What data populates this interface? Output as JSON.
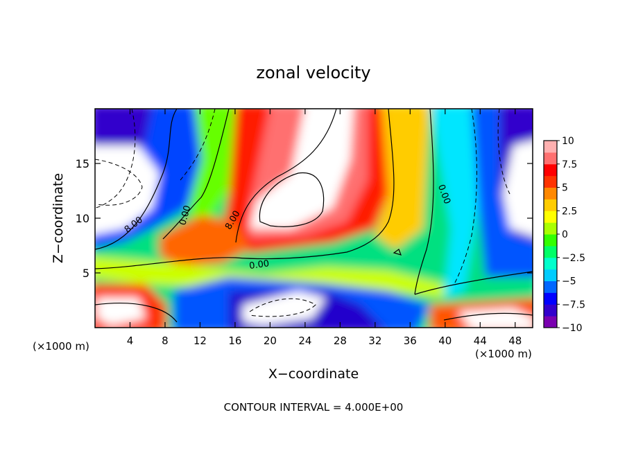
{
  "chart_data": {
    "type": "heatmap",
    "title": "zonal velocity",
    "xlabel": "X−coordinate",
    "ylabel": "Z−coordinate",
    "x_unit_left": "(×1000 m)",
    "x_unit_right": "(×1000 m)",
    "footer": "CONTOUR INTERVAL = 4.000E+00",
    "xlim": [
      0,
      50
    ],
    "ylim": [
      0,
      20
    ],
    "x_ticks": [
      4,
      8,
      12,
      16,
      20,
      24,
      28,
      32,
      36,
      40,
      44,
      48
    ],
    "x_tick_labels": [
      "4",
      "8",
      "12",
      "16",
      "20",
      "24",
      "28",
      "32",
      "36",
      "40",
      "44",
      "48"
    ],
    "y_ticks": [
      5,
      10,
      15
    ],
    "y_tick_labels": [
      "5",
      "10",
      "15"
    ],
    "colorbar": {
      "min": -10,
      "max": 10,
      "tick_values": [
        10,
        7.5,
        5,
        2.5,
        0,
        -2.5,
        -5,
        -7.5,
        -10
      ],
      "tick_labels": [
        "10",
        "7.5",
        "5",
        "2.5",
        "0",
        "−2.5",
        "−5",
        "−7.5",
        "−10"
      ],
      "colors": [
        "#7a00b0",
        "#3300cc",
        "#0000ff",
        "#0066ff",
        "#00ccff",
        "#00ffcc",
        "#00ff66",
        "#33ff00",
        "#aaff00",
        "#ffff00",
        "#ffcc00",
        "#ff8800",
        "#ff3300",
        "#ff0000",
        "#ff7070",
        "#ffb0b0"
      ]
    },
    "contour_interval": 4,
    "contour_labels": [
      {
        "text": "8.00",
        "x": 4.6,
        "y": 9.2,
        "angle": -38
      },
      {
        "text": "0.00",
        "x": 10.6,
        "y": 10.2,
        "angle": -75
      },
      {
        "text": "8.00",
        "x": 16.0,
        "y": 9.7,
        "angle": -60
      },
      {
        "text": "0.00",
        "x": 18.8,
        "y": 5.5,
        "angle": -8
      },
      {
        "text": "0.00",
        "x": 39.6,
        "y": 12.1,
        "angle": 70
      }
    ]
  }
}
